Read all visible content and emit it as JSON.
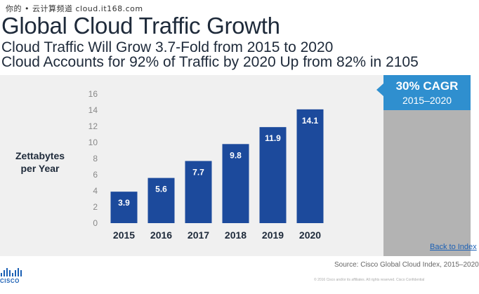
{
  "watermark": "你的 • 云计算频道 cloud.it168.com",
  "title": "Global Cloud Traffic Growth",
  "subtitle1": "Cloud Traffic Will Grow 3.7-Fold from 2015 to 2020",
  "subtitle2": "Cloud Accounts for 92% of Traffic by 2020 Up from 82% in 2105",
  "side": {
    "cagr": "30% CAGR",
    "range": "2015–2020",
    "back_link": "Back to Index"
  },
  "footer": {
    "source": "Source: Cisco Global Cloud Index, 2015–2020",
    "copyright": "© 2016 Cisco and/or its affiliates. All rights reserved. Cisco Confidential",
    "logo_text": "CISCO"
  },
  "colors": {
    "bar": "#1c4a9c",
    "panel": "#b3b3b3",
    "accent": "#2f8fcf"
  },
  "chart_data": {
    "type": "bar",
    "title": "Global Cloud Traffic Growth",
    "ylabel": "Zettabytes per Year",
    "ylabel_lines": [
      "Zettabytes",
      "per Year"
    ],
    "xlabel": "",
    "categories": [
      "2015",
      "2016",
      "2017",
      "2018",
      "2019",
      "2020"
    ],
    "values": [
      3.9,
      5.6,
      7.7,
      9.8,
      11.9,
      14.1
    ],
    "ylim": [
      0,
      16
    ],
    "yticks": [
      0,
      2,
      4,
      6,
      8,
      10,
      12,
      14,
      16
    ],
    "grid": false
  }
}
